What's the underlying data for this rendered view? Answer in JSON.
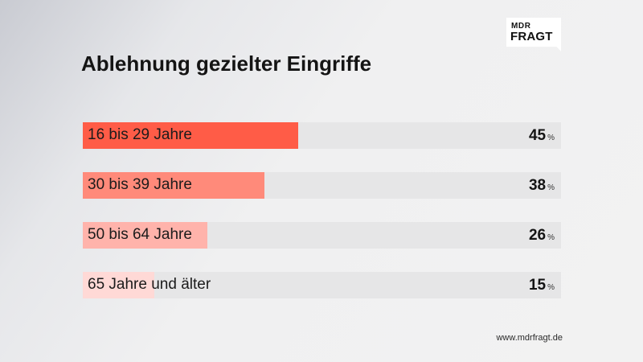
{
  "logo": {
    "top": "MDR",
    "bottom": "FRAGT"
  },
  "chart_data": {
    "type": "bar",
    "orientation": "horizontal",
    "title": "Ablehnung gezielter Eingriffe",
    "categories": [
      "16 bis 29 Jahre",
      "30 bis 39 Jahre",
      "50 bis 64 Jahre",
      "65 Jahre und älter"
    ],
    "values": [
      45,
      38,
      26,
      15
    ],
    "value_labels": [
      "45",
      "38",
      "26",
      "15"
    ],
    "unit": "%",
    "xlim": [
      0,
      100
    ],
    "bar_colors": [
      "#ff5c47",
      "#ff8a7a",
      "#ffb3ab",
      "#ffd9d6"
    ],
    "track_color": "#e6e6e7"
  },
  "footer": {
    "source": "www.mdrfragt.de"
  }
}
